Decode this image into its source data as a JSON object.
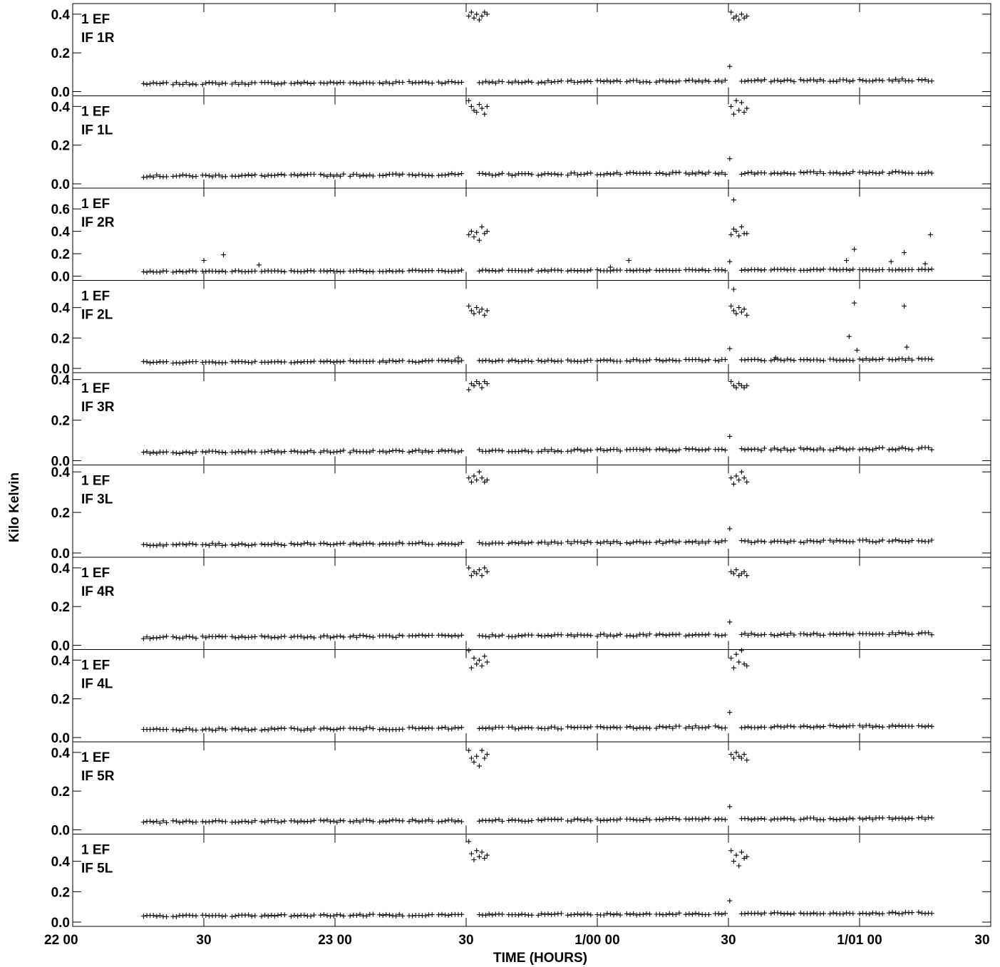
{
  "chart_data": {
    "type": "scatter",
    "marker": "+",
    "color": "#000000",
    "ylabel": "Kilo Kelvin",
    "xlabel": "TIME (HOURS)",
    "xlim": [
      22.0,
      25.5
    ],
    "x_ticks": [
      {
        "value": 22.0,
        "label": "22 00"
      },
      {
        "value": 22.5,
        "label": "30"
      },
      {
        "value": 23.0,
        "label": "23 00"
      },
      {
        "value": 23.5,
        "label": "30"
      },
      {
        "value": 24.0,
        "label": "1/00 00"
      },
      {
        "value": 24.5,
        "label": "30"
      },
      {
        "value": 25.0,
        "label": "1/01 00"
      },
      {
        "value": 25.5,
        "label": "30"
      }
    ],
    "panels": [
      {
        "label1": "1 EF",
        "label2": "IF 1R",
        "ylim": [
          0.0,
          0.44
        ],
        "yticks": [
          "0.0",
          "0.2",
          "0.4"
        ],
        "ytick_values": [
          0,
          0.2,
          0.4
        ],
        "base_start": 0.04,
        "base_end": 0.06,
        "peak1": [
          0.39,
          0.41,
          0.38,
          0.4,
          0.37,
          0.39,
          0.41,
          0.4
        ],
        "peak2": [
          0.41,
          0.38,
          0.39,
          0.37,
          0.4,
          0.38,
          0.39
        ],
        "outliers": [
          [
            24.505,
            0.13
          ]
        ]
      },
      {
        "label1": "1 EF",
        "label2": "IF 1L",
        "ylim": [
          0.0,
          0.44
        ],
        "yticks": [
          "0.0",
          "0.2",
          "0.4"
        ],
        "ytick_values": [
          0,
          0.2,
          0.4
        ],
        "base_start": 0.04,
        "base_end": 0.06,
        "peak1": [
          0.43,
          0.4,
          0.38,
          0.37,
          0.41,
          0.39,
          0.36,
          0.4
        ],
        "peak2": [
          0.4,
          0.36,
          0.43,
          0.38,
          0.42,
          0.37,
          0.39
        ],
        "outliers": [
          [
            24.505,
            0.13
          ]
        ]
      },
      {
        "label1": "1 EF",
        "label2": "IF 2R",
        "ylim": [
          0.0,
          0.76
        ],
        "yticks": [
          "0.0",
          "0.2",
          "0.4",
          "0.6"
        ],
        "ytick_values": [
          0,
          0.2,
          0.4,
          0.6
        ],
        "base_start": 0.04,
        "base_end": 0.06,
        "peak1": [
          0.37,
          0.4,
          0.35,
          0.39,
          0.32,
          0.44,
          0.38,
          0.4
        ],
        "peak2": [
          0.37,
          0.42,
          0.4,
          0.36,
          0.44,
          0.38,
          0.38
        ],
        "outliers": [
          [
            22.5,
            0.14
          ],
          [
            22.575,
            0.19
          ],
          [
            22.71,
            0.1
          ],
          [
            24.505,
            0.13
          ],
          [
            24.52,
            0.68
          ],
          [
            24.05,
            0.08
          ],
          [
            24.12,
            0.14
          ],
          [
            24.95,
            0.14
          ],
          [
            24.98,
            0.24
          ],
          [
            25.17,
            0.21
          ],
          [
            25.12,
            0.13
          ],
          [
            25.27,
            0.37
          ],
          [
            25.25,
            0.11
          ]
        ]
      },
      {
        "label1": "1 EF",
        "label2": "IF 2L",
        "ylim": [
          0.0,
          0.56
        ],
        "yticks": [
          "0.0",
          "0.2",
          "0.4"
        ],
        "ytick_values": [
          0,
          0.2,
          0.4
        ],
        "base_start": 0.04,
        "base_end": 0.06,
        "peak1": [
          0.41,
          0.38,
          0.36,
          0.4,
          0.37,
          0.39,
          0.35,
          0.38
        ],
        "peak2": [
          0.41,
          0.38,
          0.36,
          0.4,
          0.37,
          0.39,
          0.35
        ],
        "outliers": [
          [
            24.505,
            0.13
          ],
          [
            24.52,
            0.52
          ],
          [
            24.96,
            0.21
          ],
          [
            24.98,
            0.43
          ],
          [
            24.99,
            0.12
          ],
          [
            25.17,
            0.41
          ],
          [
            25.18,
            0.14
          ],
          [
            23.47,
            0.07
          ],
          [
            24.68,
            0.07
          ]
        ]
      },
      {
        "label1": "1 EF",
        "label2": "IF 3R",
        "ylim": [
          0.0,
          0.42
        ],
        "yticks": [
          "0.0",
          "0.2",
          "0.4"
        ],
        "ytick_values": [
          0,
          0.2,
          0.4
        ],
        "base_start": 0.04,
        "base_end": 0.06,
        "peak1": [
          0.35,
          0.38,
          0.37,
          0.39,
          0.38,
          0.36,
          0.39,
          0.38
        ],
        "peak2": [
          0.39,
          0.37,
          0.36,
          0.38,
          0.37,
          0.36,
          0.37
        ],
        "outliers": [
          [
            24.505,
            0.12
          ]
        ]
      },
      {
        "label1": "1 EF",
        "label2": "IF 3L",
        "ylim": [
          0.0,
          0.42
        ],
        "yticks": [
          "0.0",
          "0.2",
          "0.4"
        ],
        "ytick_values": [
          0,
          0.2,
          0.4
        ],
        "base_start": 0.04,
        "base_end": 0.06,
        "peak1": [
          0.37,
          0.35,
          0.38,
          0.36,
          0.4,
          0.37,
          0.35,
          0.36
        ],
        "peak2": [
          0.37,
          0.34,
          0.38,
          0.36,
          0.4,
          0.37,
          0.35
        ],
        "outliers": [
          [
            24.505,
            0.12
          ]
        ]
      },
      {
        "label1": "1 EF",
        "label2": "IF 4R",
        "ylim": [
          0.0,
          0.44
        ],
        "yticks": [
          "0.0",
          "0.2",
          "0.4"
        ],
        "ytick_values": [
          0,
          0.2,
          0.4
        ],
        "base_start": 0.04,
        "base_end": 0.06,
        "peak1": [
          0.4,
          0.36,
          0.38,
          0.37,
          0.39,
          0.36,
          0.4,
          0.38
        ],
        "peak2": [
          0.38,
          0.37,
          0.39,
          0.36,
          0.37,
          0.38,
          0.36
        ],
        "outliers": [
          [
            24.505,
            0.12
          ]
        ]
      },
      {
        "label1": "1 EF",
        "label2": "IF 4L",
        "ylim": [
          0.0,
          0.44
        ],
        "yticks": [
          "0.0",
          "0.2",
          "0.4"
        ],
        "ytick_values": [
          0,
          0.2,
          0.4
        ],
        "base_start": 0.04,
        "base_end": 0.06,
        "peak1": [
          0.45,
          0.36,
          0.41,
          0.38,
          0.4,
          0.37,
          0.42,
          0.39
        ],
        "peak2": [
          0.41,
          0.36,
          0.43,
          0.39,
          0.45,
          0.38,
          0.37
        ],
        "outliers": [
          [
            24.505,
            0.13
          ]
        ]
      },
      {
        "label1": "1 EF",
        "label2": "IF 5R",
        "ylim": [
          0.0,
          0.44
        ],
        "yticks": [
          "0.0",
          "0.2",
          "0.4"
        ],
        "ytick_values": [
          0,
          0.2,
          0.4
        ],
        "base_start": 0.04,
        "base_end": 0.06,
        "peak1": [
          0.41,
          0.37,
          0.35,
          0.38,
          0.33,
          0.41,
          0.37,
          0.39
        ],
        "peak2": [
          0.39,
          0.37,
          0.4,
          0.38,
          0.37,
          0.39,
          0.36
        ],
        "outliers": [
          [
            24.505,
            0.12
          ]
        ]
      },
      {
        "label1": "1 EF",
        "label2": "IF 5L",
        "ylim": [
          0.0,
          0.56
        ],
        "yticks": [
          "0.0",
          "0.2",
          "0.4"
        ],
        "ytick_values": [
          0,
          0.2,
          0.4
        ],
        "base_start": 0.04,
        "base_end": 0.06,
        "peak1": [
          0.53,
          0.45,
          0.41,
          0.47,
          0.43,
          0.46,
          0.42,
          0.44
        ],
        "peak2": [
          0.47,
          0.4,
          0.44,
          0.37,
          0.46,
          0.42,
          0.43
        ],
        "outliers": [
          [
            24.505,
            0.14
          ]
        ]
      }
    ]
  }
}
